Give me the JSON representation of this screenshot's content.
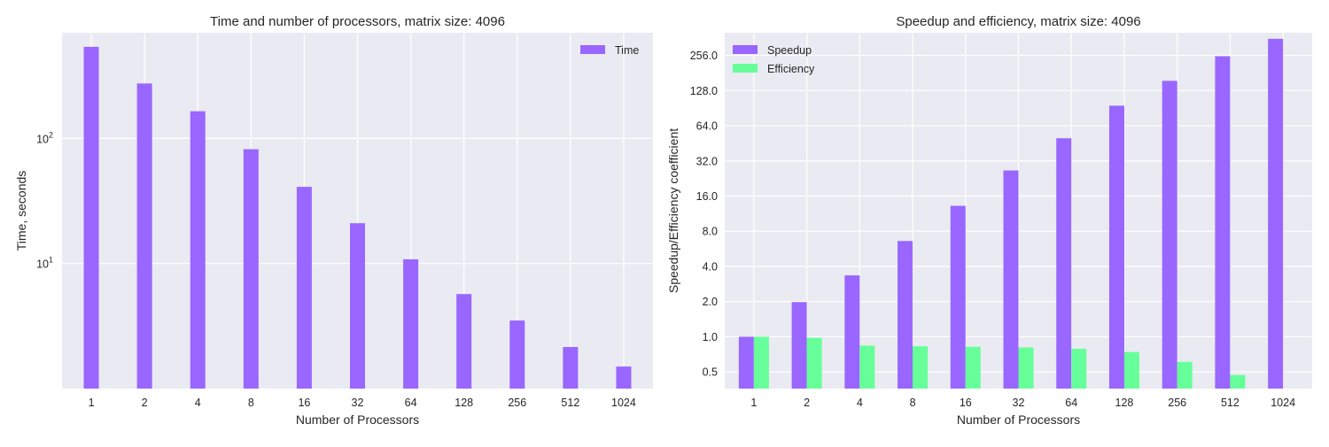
{
  "chart_data": [
    {
      "type": "bar",
      "title": "Time and number of processors, matrix size: 4096",
      "xlabel": "Number of Processors",
      "ylabel": "Time, seconds",
      "yscale": "log",
      "ylim": [
        1.0,
        700
      ],
      "yticks": [
        {
          "value": 10,
          "base": "10",
          "exp": "1"
        },
        {
          "value": 100,
          "base": "10",
          "exp": "2"
        }
      ],
      "categories": [
        "1",
        "2",
        "4",
        "8",
        "16",
        "32",
        "64",
        "128",
        "256",
        "512",
        "1024"
      ],
      "series": [
        {
          "name": "Time",
          "color": "#9966FF",
          "values": [
            540,
            275,
            165,
            82,
            41,
            21,
            10.8,
            5.7,
            3.5,
            2.15,
            1.5
          ]
        }
      ],
      "grid": true,
      "legend_position": "top-right"
    },
    {
      "type": "bar",
      "title": "Speedup and efficiency, matrix size: 4096",
      "xlabel": "Number of Processors",
      "ylabel": "Speedup/Efficiency coefficient",
      "yscale": "log2",
      "ylim": [
        0.36,
        400
      ],
      "yticks": [
        "0.5",
        "1.0",
        "2.0",
        "4.0",
        "8.0",
        "16.0",
        "32.0",
        "64.0",
        "128.0",
        "256.0"
      ],
      "categories": [
        "1",
        "2",
        "4",
        "8",
        "16",
        "32",
        "64",
        "128",
        "256",
        "512",
        "1024"
      ],
      "series": [
        {
          "name": "Speedup",
          "color": "#9966FF",
          "values": [
            1.0,
            1.98,
            3.35,
            6.6,
            13.2,
            26.5,
            50,
            95,
            155,
            252,
            355
          ]
        },
        {
          "name": "Efficiency",
          "color": "#66FF99",
          "values": [
            1.0,
            0.98,
            0.84,
            0.83,
            0.82,
            0.81,
            0.79,
            0.74,
            0.61,
            0.47,
            0.35
          ]
        }
      ],
      "grid": true,
      "legend_position": "top-left"
    }
  ]
}
